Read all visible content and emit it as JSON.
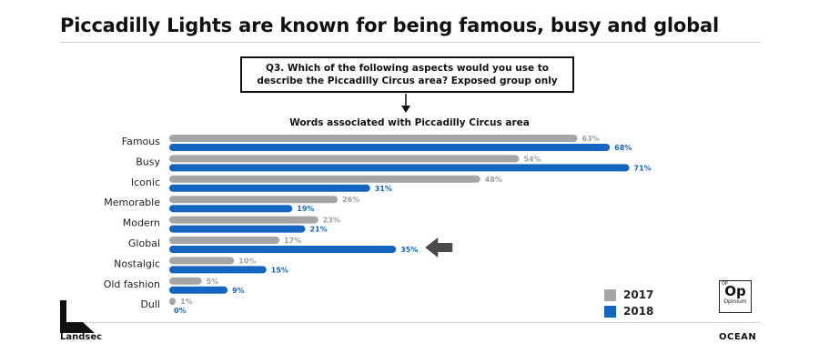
{
  "title": "Piccadilly Lights are known for being famous, busy and global",
  "question": "Q3. Which of the following aspects would you use to describe the Piccadilly Circus area? Exposed group only",
  "colors": {
    "series_2017": "#a6a6a6",
    "series_2018": "#1565c0"
  },
  "chart_data": {
    "type": "bar",
    "orientation": "horizontal",
    "title": "Words associated with Piccadilly Circus area",
    "categories": [
      "Famous",
      "Busy",
      "Iconic",
      "Memorable",
      "Modern",
      "Global",
      "Nostalgic",
      "Old fashion",
      "Dull"
    ],
    "series": [
      {
        "name": "2017",
        "values": [
          63,
          54,
          48,
          26,
          23,
          17,
          10,
          5,
          1
        ]
      },
      {
        "name": "2018",
        "values": [
          68,
          71,
          31,
          19,
          21,
          35,
          15,
          9,
          0
        ]
      }
    ],
    "value_suffix": "%",
    "highlight_category": "Global",
    "legend_position": "bottom-right",
    "grid": false
  },
  "legend": {
    "items": [
      "2017",
      "2018"
    ]
  },
  "logos": {
    "landsec": "Landsec",
    "ocean": "OCEAN",
    "opinium": {
      "corner": "OP",
      "symbol": "Op",
      "name": "Opinium"
    }
  }
}
